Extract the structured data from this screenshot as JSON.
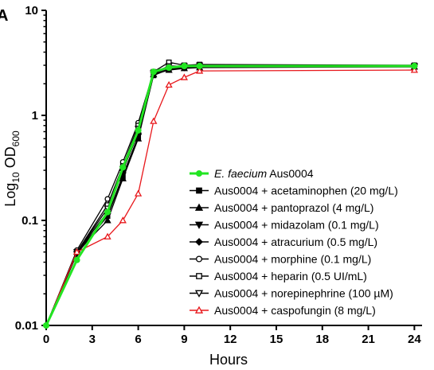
{
  "panel_label": "A",
  "chart_data": {
    "type": "line",
    "title": "",
    "xlabel": "Hours",
    "ylabel": {
      "prefix": "Log",
      "sub1": "10",
      "mid": " OD",
      "sub2": "600"
    },
    "x_ticks": [
      0,
      3,
      6,
      9,
      12,
      15,
      18,
      21,
      24
    ],
    "y_ticks": [
      {
        "value": 0.01,
        "label": "0.01"
      },
      {
        "value": 0.1,
        "label": "0.1"
      },
      {
        "value": 1,
        "label": "1"
      },
      {
        "value": 10,
        "label": "10"
      }
    ],
    "xlim": [
      0,
      24.5
    ],
    "ylim": [
      0.01,
      10
    ],
    "y_scale": "log",
    "legend_position": "lower-right",
    "x": [
      0,
      2,
      4,
      5,
      6,
      7,
      8,
      9,
      10,
      24
    ],
    "series": [
      {
        "name_italic": "E. faecium",
        "name_rest": " Aus0004",
        "marker": "circle-filled",
        "color": "#22e522",
        "width": 3,
        "values": [
          0.01,
          0.042,
          0.12,
          0.32,
          0.72,
          2.6,
          2.85,
          2.95,
          2.95,
          2.95
        ]
      },
      {
        "name": "Aus0004 + acetaminophen (20 mg/L)",
        "marker": "square-filled",
        "color": "#000000",
        "width": 1.3,
        "values": [
          0.01,
          0.05,
          0.11,
          0.26,
          0.62,
          2.4,
          2.75,
          2.85,
          2.9,
          2.9
        ]
      },
      {
        "name": "Aus0004 + pantoprazol (4 mg/L)",
        "marker": "triangle-up-filled",
        "color": "#000000",
        "width": 1.3,
        "values": [
          0.01,
          0.05,
          0.1,
          0.25,
          0.6,
          2.45,
          2.7,
          2.8,
          2.85,
          2.9
        ]
      },
      {
        "name": "Aus0004 + midazolam (0.1 mg/L)",
        "marker": "triangle-down-filled",
        "color": "#000000",
        "width": 1.3,
        "values": [
          0.01,
          0.048,
          0.11,
          0.27,
          0.63,
          2.5,
          2.8,
          2.85,
          2.9,
          2.9
        ]
      },
      {
        "name": "Aus0004 + atracurium (0.5 mg/L)",
        "marker": "diamond-filled",
        "color": "#000000",
        "width": 1.3,
        "values": [
          0.01,
          0.05,
          0.12,
          0.3,
          0.68,
          2.55,
          2.85,
          2.9,
          2.95,
          2.95
        ]
      },
      {
        "name": "Aus0004 + morphine (0.1 mg/L)",
        "marker": "circle-open",
        "color": "#000000",
        "width": 1.3,
        "values": [
          0.01,
          0.052,
          0.16,
          0.36,
          0.85,
          2.6,
          2.9,
          2.95,
          3.0,
          3.0
        ]
      },
      {
        "name": "Aus0004 + heparin (0.5 UI/mL)",
        "marker": "square-open",
        "color": "#000000",
        "width": 1.3,
        "values": [
          0.01,
          0.05,
          0.14,
          0.33,
          0.8,
          2.6,
          3.2,
          3.0,
          3.05,
          3.0
        ]
      },
      {
        "name": "Aus0004 + norepinephrine (100 µM)",
        "marker": "triangle-down-open",
        "color": "#000000",
        "width": 1.3,
        "values": [
          0.01,
          0.05,
          0.13,
          0.31,
          0.75,
          2.55,
          2.95,
          2.95,
          3.0,
          2.95
        ]
      },
      {
        "name": "Aus0004 + caspofungin (8 mg/L)",
        "marker": "triangle-up-open",
        "color": "#e8181c",
        "width": 1.3,
        "values": [
          0.01,
          0.05,
          0.07,
          0.1,
          0.18,
          0.88,
          1.95,
          2.3,
          2.65,
          2.7
        ]
      }
    ]
  }
}
